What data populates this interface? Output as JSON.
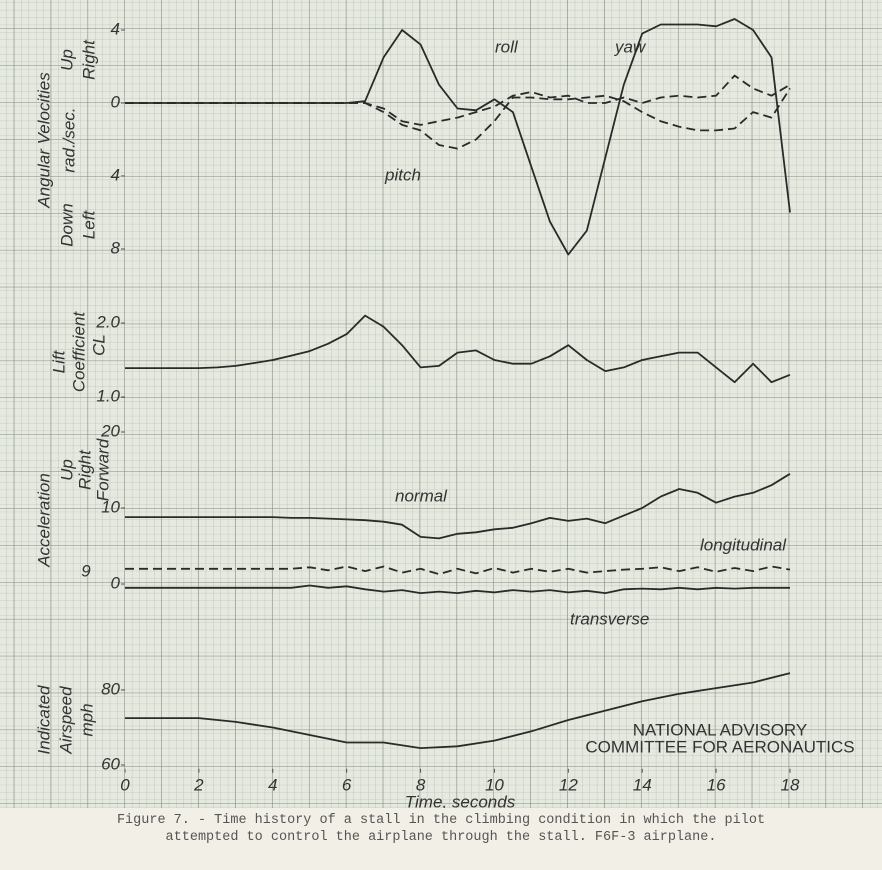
{
  "chart_data": [
    {
      "type": "line",
      "axis_labels": [
        "Angular Velocities",
        "rad./sec.",
        "Up",
        "Down",
        "Right",
        "Left"
      ],
      "annotations": [
        "roll",
        "yaw",
        "pitch"
      ],
      "x": [
        0,
        0.5,
        1,
        1.5,
        2,
        2.5,
        3,
        3.5,
        4,
        4.5,
        5,
        5.5,
        6,
        6.5,
        7,
        7.5,
        8,
        8.5,
        9,
        9.5,
        10,
        10.5,
        11,
        11.5,
        12,
        12.5,
        13,
        13.5,
        14,
        14.5,
        15,
        15.5,
        16,
        16.5,
        17,
        17.5,
        18
      ],
      "xlim": [
        0,
        18
      ],
      "ylim": [
        -8.5,
        5.6
      ],
      "yticks": [
        {
          "value": 4,
          "label": "4"
        },
        0,
        {
          "value": -4,
          "label": "4"
        },
        {
          "value": -8,
          "label": "8"
        }
      ],
      "series": [
        {
          "name": "roll",
          "color": "#2a2a2a",
          "style": "solid",
          "values": [
            0,
            0,
            0,
            0,
            0,
            0,
            0,
            0,
            0,
            0,
            0,
            0,
            0,
            0.1,
            2.5,
            4.0,
            3.2,
            1.0,
            -0.3,
            -0.4,
            0.2,
            -0.5,
            -3.5,
            -6.5,
            -8.3,
            -7,
            -3,
            1,
            3.8,
            4.3,
            4.3,
            4.3,
            4.2,
            4.6,
            4,
            2.5,
            -6
          ]
        },
        {
          "name": "pitch",
          "color": "#2a2a2a",
          "style": "dashed",
          "values": [
            0,
            0,
            0,
            0,
            0,
            0,
            0,
            0,
            0,
            0,
            0,
            0,
            0,
            0,
            -0.5,
            -1.2,
            -1.5,
            -2.3,
            -2.5,
            -2.0,
            -1.0,
            0.3,
            0.3,
            0.2,
            0.2,
            0.3,
            0.4,
            0.1,
            -0.5,
            -1.0,
            -1.3,
            -1.5,
            -1.5,
            -1.4,
            -0.5,
            -0.8,
            0.8
          ]
        },
        {
          "name": "yaw",
          "color": "#2a2a2a",
          "style": "dashed",
          "values": [
            0,
            0,
            0,
            0,
            0,
            0,
            0,
            0,
            0,
            0,
            0,
            0,
            0,
            0,
            -0.3,
            -1.0,
            -1.2,
            -1.0,
            -0.8,
            -0.5,
            -0.2,
            0.4,
            0.6,
            0.3,
            0.4,
            0,
            0,
            0.3,
            0,
            0.3,
            0.4,
            0.3,
            0.4,
            1.5,
            0.8,
            0.4,
            1.0
          ]
        }
      ]
    },
    {
      "type": "line",
      "axis_labels": [
        "Lift",
        "Coefficient",
        "CL"
      ],
      "x": [
        0,
        0.5,
        1,
        1.5,
        2,
        2.5,
        3,
        3.5,
        4,
        4.5,
        5,
        5.5,
        6,
        6.5,
        7,
        7.5,
        8,
        8.5,
        9,
        9.5,
        10,
        10.5,
        11,
        11.5,
        12,
        12.5,
        13,
        13.5,
        14,
        14.5,
        15,
        15.5,
        16,
        16.5,
        17,
        17.5,
        18
      ],
      "xlim": [
        0,
        18
      ],
      "ylim": [
        0.9,
        2.3
      ],
      "yticks": [
        {
          "value": 2,
          "label": "2.0"
        },
        {
          "value": 1,
          "label": "1.0"
        }
      ],
      "series": [
        {
          "name": "CL",
          "color": "#2a2a2a",
          "style": "solid",
          "values": [
            1.39,
            1.39,
            1.39,
            1.39,
            1.39,
            1.4,
            1.42,
            1.46,
            1.5,
            1.56,
            1.62,
            1.72,
            1.85,
            2.1,
            1.95,
            1.7,
            1.4,
            1.42,
            1.6,
            1.63,
            1.5,
            1.45,
            1.45,
            1.55,
            1.7,
            1.5,
            1.35,
            1.4,
            1.5,
            1.55,
            1.6,
            1.6,
            1.4,
            1.2,
            1.45,
            1.2,
            1.3
          ]
        }
      ]
    },
    {
      "type": "line",
      "axis_labels": [
        "Acceleration",
        "Up",
        "Right",
        "Forward",
        "9"
      ],
      "annotations": [
        "normal",
        "longitudinal",
        "transverse"
      ],
      "x": [
        0,
        0.5,
        1,
        1.5,
        2,
        2.5,
        3,
        3.5,
        4,
        4.5,
        5,
        5.5,
        6,
        6.5,
        7,
        7.5,
        8,
        8.5,
        9,
        9.5,
        10,
        10.5,
        11,
        11.5,
        12,
        12.5,
        13,
        13.5,
        14,
        14.5,
        15,
        15.5,
        16,
        16.5,
        17,
        17.5,
        18
      ],
      "xlim": [
        0,
        18
      ],
      "ylim": [
        -0.3,
        2.1
      ],
      "yticks": [
        {
          "value": 2,
          "label": "20"
        },
        {
          "value": 1,
          "label": "10"
        },
        0
      ],
      "series": [
        {
          "name": "normal",
          "color": "#2a2a2a",
          "style": "solid",
          "values": [
            0.88,
            0.88,
            0.88,
            0.88,
            0.88,
            0.88,
            0.88,
            0.88,
            0.88,
            0.87,
            0.87,
            0.86,
            0.85,
            0.84,
            0.82,
            0.78,
            0.62,
            0.6,
            0.66,
            0.68,
            0.72,
            0.74,
            0.8,
            0.87,
            0.83,
            0.86,
            0.8,
            0.9,
            1.0,
            1.15,
            1.25,
            1.2,
            1.07,
            1.15,
            1.2,
            1.3,
            1.45
          ]
        },
        {
          "name": "longitudinal",
          "color": "#2a2a2a",
          "style": "dashed",
          "values": [
            0.2,
            0.2,
            0.2,
            0.2,
            0.2,
            0.2,
            0.2,
            0.2,
            0.2,
            0.2,
            0.22,
            0.18,
            0.23,
            0.17,
            0.23,
            0.15,
            0.2,
            0.13,
            0.2,
            0.14,
            0.21,
            0.15,
            0.2,
            0.16,
            0.2,
            0.15,
            0.17,
            0.19,
            0.2,
            0.22,
            0.17,
            0.22,
            0.16,
            0.21,
            0.17,
            0.23,
            0.19
          ]
        },
        {
          "name": "transverse",
          "color": "#2a2a2a",
          "style": "solid",
          "values": [
            -0.05,
            -0.05,
            -0.05,
            -0.05,
            -0.05,
            -0.05,
            -0.05,
            -0.05,
            -0.05,
            -0.05,
            -0.02,
            -0.05,
            -0.03,
            -0.07,
            -0.1,
            -0.08,
            -0.12,
            -0.1,
            -0.12,
            -0.09,
            -0.11,
            -0.08,
            -0.1,
            -0.08,
            -0.11,
            -0.09,
            -0.12,
            -0.07,
            -0.06,
            -0.07,
            -0.05,
            -0.07,
            -0.05,
            -0.06,
            -0.05,
            -0.05,
            -0.05
          ]
        }
      ]
    },
    {
      "type": "line",
      "axis_labels": [
        "Indicated",
        "Airspeed",
        "mph"
      ],
      "annotations": [
        "NATIONAL ADVISORY",
        "COMMITTEE FOR AERONAUTICS"
      ],
      "xlabel": "Time, seconds",
      "x": [
        0,
        1,
        2,
        3,
        4,
        5,
        6,
        7,
        8,
        9,
        10,
        11,
        12,
        13,
        14,
        15,
        16,
        17,
        18
      ],
      "xlim": [
        0,
        18
      ],
      "ylim": [
        59,
        87
      ],
      "xticks": [
        0,
        2,
        4,
        6,
        8,
        10,
        12,
        14,
        16,
        18
      ],
      "yticks": [
        80,
        60
      ],
      "series": [
        {
          "name": "airspeed",
          "color": "#2a2a2a",
          "style": "solid",
          "values": [
            72.5,
            72.5,
            72.5,
            71.5,
            70,
            68,
            66,
            66,
            64.5,
            65,
            66.5,
            69,
            72,
            74.5,
            77,
            79,
            80.5,
            82,
            84.5
          ]
        }
      ]
    }
  ],
  "caption": [
    "Figure 7. - Time history of a stall in the climbing condition in which the pilot",
    "attempted to control the airplane through the stall.  F6F-3 airplane."
  ]
}
